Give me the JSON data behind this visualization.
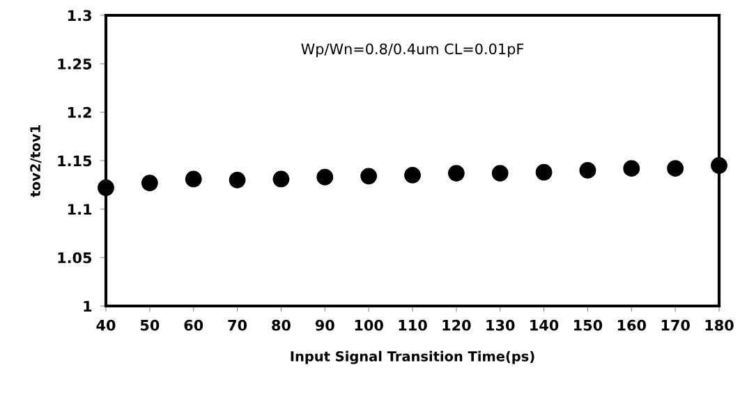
{
  "chart_data": {
    "type": "scatter",
    "xlabel": "Input Signal Transition Time(ps)",
    "ylabel": "tov2/tov1",
    "annotations": [
      "Wp/Wn=0.8/0.4um CL=0.01pF"
    ],
    "x": [
      40,
      50,
      60,
      70,
      80,
      90,
      100,
      110,
      120,
      130,
      140,
      150,
      160,
      170,
      180
    ],
    "series": [
      {
        "color": "#000000",
        "values": [
          1.122,
          1.127,
          1.131,
          1.13,
          1.131,
          1.133,
          1.134,
          1.135,
          1.137,
          1.137,
          1.138,
          1.14,
          1.142,
          1.142,
          1.145
        ]
      }
    ],
    "xlim": [
      40,
      180
    ],
    "xticks": [
      40,
      50,
      60,
      70,
      80,
      90,
      100,
      110,
      120,
      130,
      140,
      150,
      160,
      170,
      180
    ],
    "ylim": [
      1,
      1.3
    ],
    "yticks": [
      1,
      {
        "value": 1.05,
        "label": "1.05"
      },
      {
        "value": 1.1,
        "label": "1.1"
      },
      {
        "value": 1.15,
        "label": "1.15"
      },
      {
        "value": 1.2,
        "label": "1.2"
      },
      {
        "value": 1.25,
        "label": "1.25"
      },
      {
        "value": 1.3,
        "label": "1.3"
      }
    ],
    "grid": false,
    "marker": "circle"
  }
}
